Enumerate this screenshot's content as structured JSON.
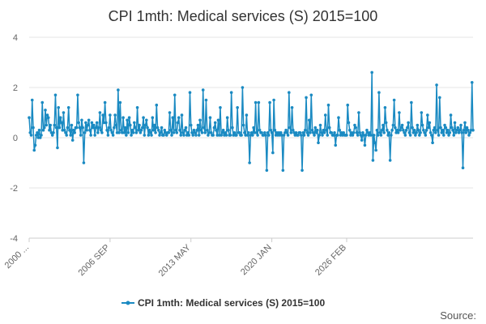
{
  "chart_data": {
    "type": "line",
    "title": "CPI 1mth: Medical services (S) 2015=100",
    "xlabel": "",
    "ylabel": "",
    "ylim": [
      -4,
      4
    ],
    "yticks": [
      "4",
      "2",
      "0",
      "-2",
      "-4"
    ],
    "ytick_values": [
      4,
      2,
      0,
      -2,
      -4
    ],
    "xticks": [
      "2000 ...",
      "2006 SEP",
      "2013 MAY",
      "2020 JAN",
      "2026 FEB"
    ],
    "xtick_index": [
      0,
      80,
      160,
      240,
      314
    ],
    "series": [
      {
        "name": "CPI 1mth: Medical services (S) 2015=100",
        "color": "#1a8ac2",
        "values": [
          0.8,
          0.2,
          0.1,
          1.5,
          0.4,
          -0.5,
          -0.3,
          0.1,
          0.2,
          0.0,
          0.3,
          0.0,
          0.1,
          1.4,
          0.3,
          0.4,
          1.1,
          0.5,
          0.9,
          0.8,
          0.3,
          0.5,
          0.2,
          0.1,
          0.2,
          0.5,
          1.7,
          0.4,
          -0.4,
          1.2,
          0.4,
          0.8,
          0.6,
          0.3,
          1.0,
          0.3,
          0.2,
          0.1,
          0.4,
          1.2,
          0.3,
          0.1,
          0.5,
          -0.1,
          0.3,
          0.2,
          0.4,
          0.4,
          1.7,
          0.6,
          0.4,
          0.1,
          0.7,
          0.4,
          -1.0,
          0.2,
          0.6,
          0.3,
          0.5,
          0.7,
          0.3,
          0.1,
          0.6,
          0.4,
          0.5,
          0.1,
          0.4,
          0.6,
          0.2,
          0.4,
          1.0,
          0.3,
          0.2,
          0.9,
          0.6,
          1.4,
          0.6,
          0.3,
          0.1,
          0.4,
          0.9,
          0.3,
          0.2,
          0.1,
          0.4,
          0.9,
          0.5,
          0.2,
          1.9,
          0.2,
          1.4,
          0.3,
          0.2,
          0.8,
          0.2,
          0.4,
          0.1,
          0.7,
          0.2,
          0.8,
          0.5,
          0.1,
          0.3,
          0.2,
          0.6,
          0.4,
          0.2,
          1.2,
          0.3,
          0.5,
          0.2,
          0.3,
          0.4,
          0.8,
          0.1,
          0.5,
          0.7,
          0.4,
          0.1,
          0.3,
          0.2,
          0.1,
          0.8,
          0.3,
          0.5,
          0.2,
          1.3,
          0.4,
          0.3,
          0.1,
          0.2,
          0.4,
          0.1,
          0.1,
          0.3,
          0.2,
          0.1,
          0.2,
          0.2,
          1.0,
          0.3,
          0.1,
          0.8,
          0.2,
          1.7,
          0.3,
          0.2,
          0.6,
          0.8,
          0.3,
          0.1,
          0.9,
          0.2,
          0.1,
          0.3,
          0.4,
          0.1,
          0.2,
          0.1,
          1.8,
          0.5,
          0.2,
          0.1,
          0.3,
          0.2,
          0.1,
          0.3,
          0.5,
          0.1,
          0.7,
          0.3,
          0.2,
          1.9,
          0.4,
          0.2,
          1.5,
          0.3,
          0.1,
          0.2,
          0.8,
          0.2,
          0.1,
          0.1,
          0.4,
          0.6,
          0.3,
          0.1,
          0.7,
          0.1,
          1.2,
          0.1,
          0.2,
          0.3,
          0.1,
          0.2,
          0.1,
          0.8,
          0.3,
          0.1,
          0.1,
          1.8,
          0.4,
          0.1,
          0.2,
          0.1,
          0.1,
          1.2,
          0.2,
          0.2,
          0.1,
          0.1,
          2.0,
          0.5,
          0.2,
          0.1,
          0.9,
          0.1,
          0.2,
          -1.0,
          0.1,
          0.2,
          0.1,
          0.4,
          0.2,
          1.4,
          0.2,
          0.1,
          1.4,
          0.3,
          0.2,
          0.2,
          0.1,
          0.1,
          0.2,
          0.1,
          -1.3,
          0.2,
          0.1,
          1.4,
          0.3,
          0.2,
          -0.6,
          1.5,
          0.3,
          0.1,
          0.2,
          0.1,
          0.2,
          0.1,
          0.2,
          0.1,
          -1.3,
          0.1,
          0.2,
          0.3,
          0.2,
          0.1,
          1.8,
          0.4,
          0.2,
          1.2,
          0.3,
          0.2,
          0.1,
          0.2,
          0.1,
          0.1,
          0.2,
          0.2,
          0.1,
          -1.3,
          0.2,
          0.1,
          0.3,
          1.6,
          0.2,
          0.1,
          0.7,
          0.2,
          1.7,
          0.3,
          0.2,
          0.1,
          0.4,
          0.2,
          0.3,
          -0.2,
          0.1,
          0.5,
          0.2,
          0.1,
          0.3,
          0.2,
          0.9,
          0.3,
          0.1,
          1.3,
          0.4,
          0.2,
          0.2,
          0.1,
          0.1,
          0.2,
          -0.3,
          0.1,
          0.1,
          0.8,
          0.3,
          0.1,
          0.2,
          0.1,
          0.2,
          0.1,
          0.1,
          0.1,
          1.3,
          0.6,
          0.3,
          0.1,
          0.2,
          0.1,
          0.2,
          0.5,
          0.4,
          0.2,
          0.1,
          1.0,
          0.2,
          0.1,
          -0.1,
          0.2,
          0.1,
          -0.3,
          0.1,
          0.3,
          0.2,
          0.1,
          0.2,
          0.1,
          2.6,
          -0.9,
          0.1,
          -0.2,
          -0.5,
          0.3,
          0.1,
          1.8,
          0.2,
          0.1,
          0.3,
          0.5,
          0.2,
          1.2,
          0.6,
          0.3,
          0.1,
          0.2,
          -0.9,
          0.1,
          0.3,
          0.5,
          1.5,
          0.4,
          0.2,
          0.3,
          0.2,
          1.0,
          0.3,
          0.4,
          0.5,
          0.3,
          0.2,
          0.1,
          0.3,
          0.4,
          0.6,
          0.2,
          0.1,
          1.4,
          0.4,
          0.2,
          0.3,
          0.1,
          0.2,
          0.5,
          0.3,
          0.1,
          0.2,
          1.0,
          0.5,
          0.3,
          0.2,
          0.1,
          0.3,
          0.9,
          0.4,
          0.6,
          0.2,
          0.1,
          -0.2,
          0.3,
          0.4,
          0.2,
          2.1,
          0.3,
          0.1,
          1.6,
          0.4,
          0.2,
          0.3,
          0.1,
          0.5,
          0.4,
          0.2,
          0.3,
          0.1,
          0.2,
          0.9,
          0.4,
          0.3,
          0.1,
          0.6,
          0.2,
          0.3,
          0.4,
          0.2,
          0.3,
          0.5,
          0.2,
          -1.2,
          0.3,
          0.6,
          0.2,
          0.4,
          0.3,
          0.1,
          0.2,
          0.3,
          2.2,
          0.3
        ]
      }
    ],
    "legend_position": "bottom-center"
  },
  "source_label": "Source:"
}
